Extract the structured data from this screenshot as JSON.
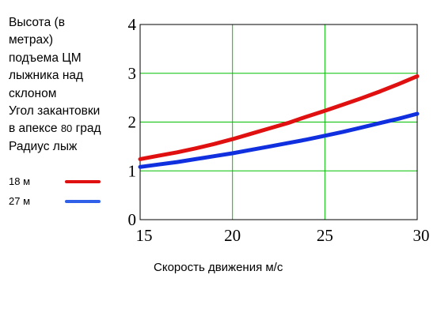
{
  "legend": {
    "description_lines": [
      "Высота (в",
      "метрах)",
      "подъема ЦМ",
      "лыжника над",
      "склоном",
      "Угол закантовки"
    ],
    "angle_line": {
      "prefix": "в апексе",
      "value": "80",
      "suffix": "град"
    },
    "radius_title": "Радиус лыж",
    "series_labels": [
      "18 м",
      "27 м"
    ]
  },
  "colors": {
    "series_18": "#e01010",
    "series_27": "#1030e0",
    "grid": "#00c000",
    "frame": "#000000"
  },
  "chart_data": {
    "type": "line",
    "title": "",
    "xlabel": "Скорость движения м/с",
    "ylabel": "",
    "xlim": [
      15,
      30
    ],
    "ylim": [
      0,
      4
    ],
    "xticks": [
      "15",
      "20",
      "25",
      "30"
    ],
    "yticks": [
      "0",
      "1",
      "2",
      "3",
      "4"
    ],
    "grid": true,
    "x": [
      15,
      16,
      17,
      18,
      19,
      20,
      21,
      22,
      23,
      24,
      25,
      26,
      27,
      28,
      29,
      30
    ],
    "series": [
      {
        "name": "18 м",
        "color": "#e01010",
        "values": [
          1.24,
          1.31,
          1.38,
          1.46,
          1.55,
          1.65,
          1.76,
          1.87,
          1.98,
          2.11,
          2.23,
          2.36,
          2.49,
          2.63,
          2.78,
          2.94
        ]
      },
      {
        "name": "27 м",
        "color": "#1030e0",
        "values": [
          1.08,
          1.13,
          1.18,
          1.24,
          1.3,
          1.36,
          1.43,
          1.5,
          1.57,
          1.64,
          1.72,
          1.8,
          1.89,
          1.98,
          2.07,
          2.17
        ]
      }
    ]
  }
}
